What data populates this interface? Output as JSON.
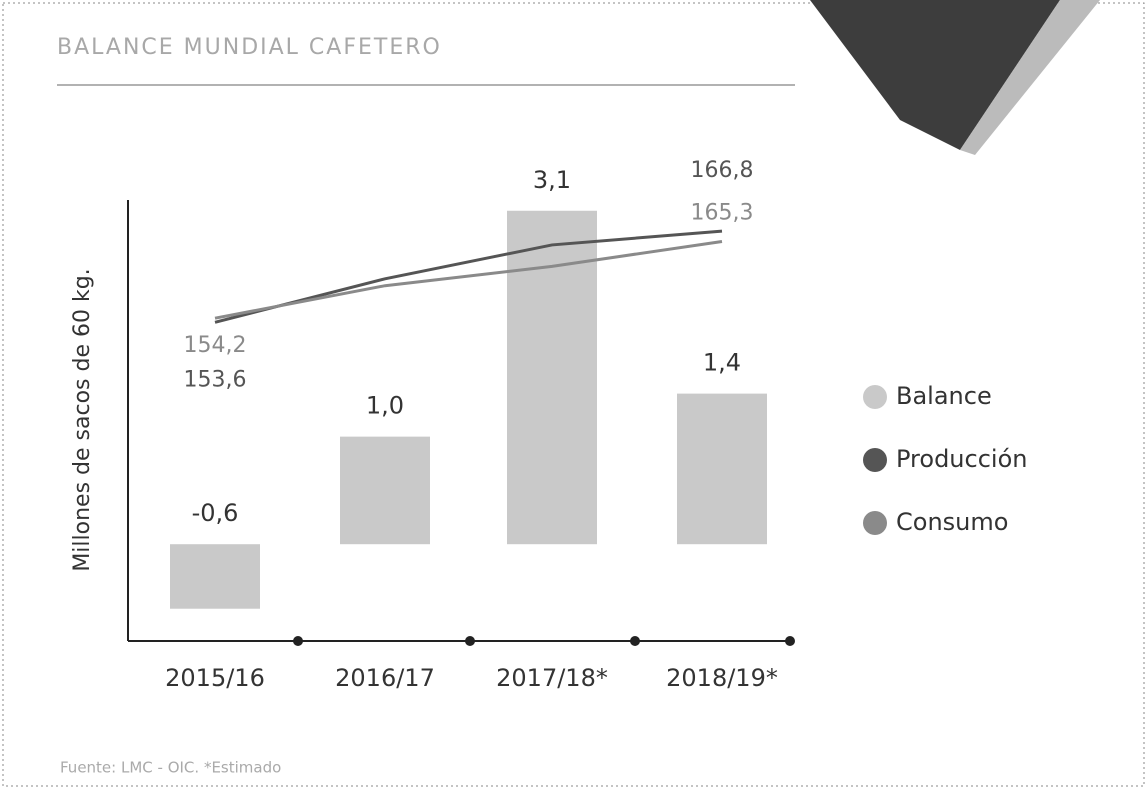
{
  "chart_data": {
    "type": "bar",
    "title": "BALANCE MUNDIAL CAFETERO",
    "source": "Fuente: LMC - OIC. *Estimado",
    "y_label": "Millones de sacos de 60 kg.",
    "categories": [
      "2015/16",
      "2016/17",
      "2017/18*",
      "2018/19*"
    ],
    "ylim": [
      -0.9,
      3.2
    ],
    "y2lim": [
      107.5,
      171.3
    ],
    "series": [
      {
        "name": "Balance",
        "type": "bar",
        "color": "#c9c9c9",
        "values": [
          -0.6,
          1.0,
          3.1,
          1.4
        ],
        "value_labels": [
          "-0,6",
          "1,0",
          "3,1",
          "1,4"
        ]
      },
      {
        "name": "Producción",
        "type": "line",
        "axis": "y2",
        "color": "#555555",
        "values": [
          153.6,
          159.9,
          164.8,
          166.8
        ],
        "value_labels": [
          "153,6",
          null,
          null,
          "166,8"
        ]
      },
      {
        "name": "Consumo",
        "type": "line",
        "axis": "y2",
        "color": "#8a8a8a",
        "values": [
          154.2,
          158.9,
          161.7,
          165.3
        ],
        "value_labels": [
          "154,2",
          null,
          null,
          "165,3"
        ]
      }
    ],
    "legend": "right"
  }
}
